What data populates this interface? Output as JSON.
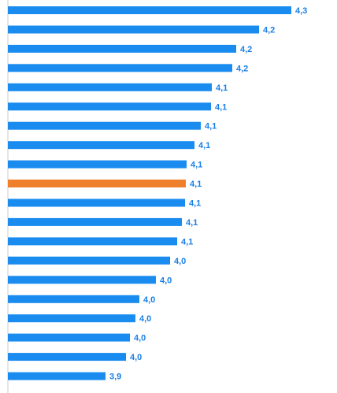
{
  "chart_data": {
    "type": "bar",
    "orientation": "horizontal",
    "values": [
      4.3,
      4.2,
      4.2,
      4.2,
      4.1,
      4.1,
      4.1,
      4.1,
      4.1,
      4.1,
      4.1,
      4.1,
      4.1,
      4.0,
      4.0,
      4.0,
      4.0,
      4.0,
      4.0,
      3.9
    ],
    "labels": [
      "4,3",
      "4,2",
      "4,2",
      "4,2",
      "4,1",
      "4,1",
      "4,1",
      "4,1",
      "4,1",
      "4,1",
      "4,1",
      "4,1",
      "4,1",
      "4,0",
      "4,0",
      "4,0",
      "4,0",
      "4,0",
      "4,0",
      "3,9"
    ],
    "highlight_index": 9,
    "colors": {
      "bar": "#1a8cf0",
      "highlight": "#f07f2c",
      "label": "#1a7fe6",
      "axis": "#cccccc"
    }
  }
}
